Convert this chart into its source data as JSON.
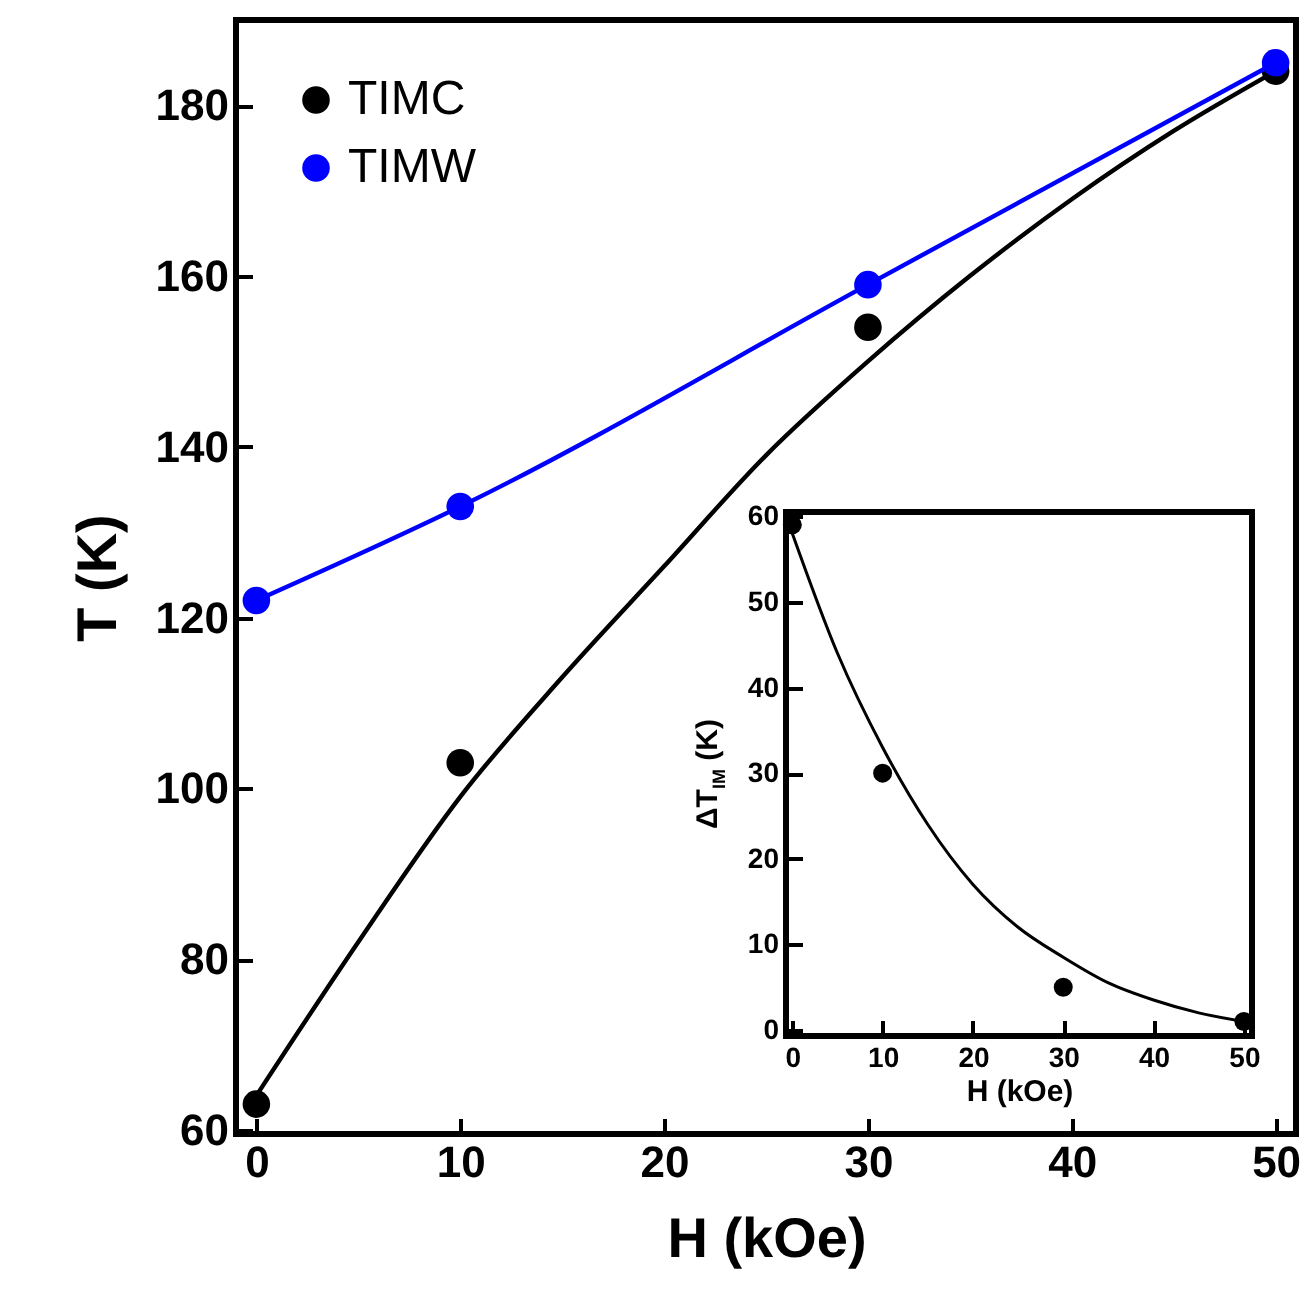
{
  "chart_data": [
    {
      "type": "line",
      "xlabel": "H (kOe)",
      "ylabel": "T (K)",
      "xlim": [
        -1,
        51
      ],
      "ylim": [
        59.5,
        190
      ],
      "xticks": [
        0,
        10,
        20,
        30,
        40,
        50
      ],
      "yticks": [
        60,
        80,
        100,
        120,
        140,
        160,
        180
      ],
      "legend": "top left",
      "grid": false,
      "marker": "circle",
      "series": [
        {
          "name": "TIMC",
          "type": "scatter",
          "color": "#000000",
          "x": [
            0,
            10,
            30,
            50
          ],
          "values": [
            63,
            103,
            154,
            184
          ]
        },
        {
          "marker": "none",
          "color": "#000000",
          "x": [
            0,
            5,
            10,
            15,
            20,
            25,
            30,
            35,
            40,
            45,
            50
          ],
          "values": [
            64,
            82,
            99,
            113,
            126,
            139,
            150,
            160,
            169,
            177,
            184
          ]
        },
        {
          "name": "TIMW",
          "color": "#0000ff",
          "x": [
            0,
            10,
            30,
            50
          ],
          "values": [
            122,
            133,
            159,
            185
          ]
        }
      ]
    },
    {
      "type": "scatter",
      "xlabel": "H (kOe)",
      "ylabel": "ΔT$_{IM}$ (K)",
      "xlim": [
        -0.7,
        50.9
      ],
      "ylim": [
        -0.7,
        60.5
      ],
      "xticks": [
        0,
        10,
        20,
        30,
        40,
        50
      ],
      "yticks": [
        0,
        10,
        20,
        30,
        40,
        50,
        60
      ],
      "grid": false,
      "marker": "circle",
      "series": [
        {
          "color": "#000000",
          "x": [
            0,
            10,
            30,
            50
          ],
          "values": [
            59,
            30,
            5,
            1
          ]
        },
        {
          "type": "line",
          "marker": "none",
          "color": "#000000",
          "x": [
            0,
            5,
            10,
            15,
            20,
            25,
            30,
            35,
            40,
            45,
            50
          ],
          "values": [
            58,
            44,
            33,
            24,
            17,
            12,
            8.5,
            5.5,
            3.5,
            2,
            1
          ]
        }
      ]
    }
  ]
}
